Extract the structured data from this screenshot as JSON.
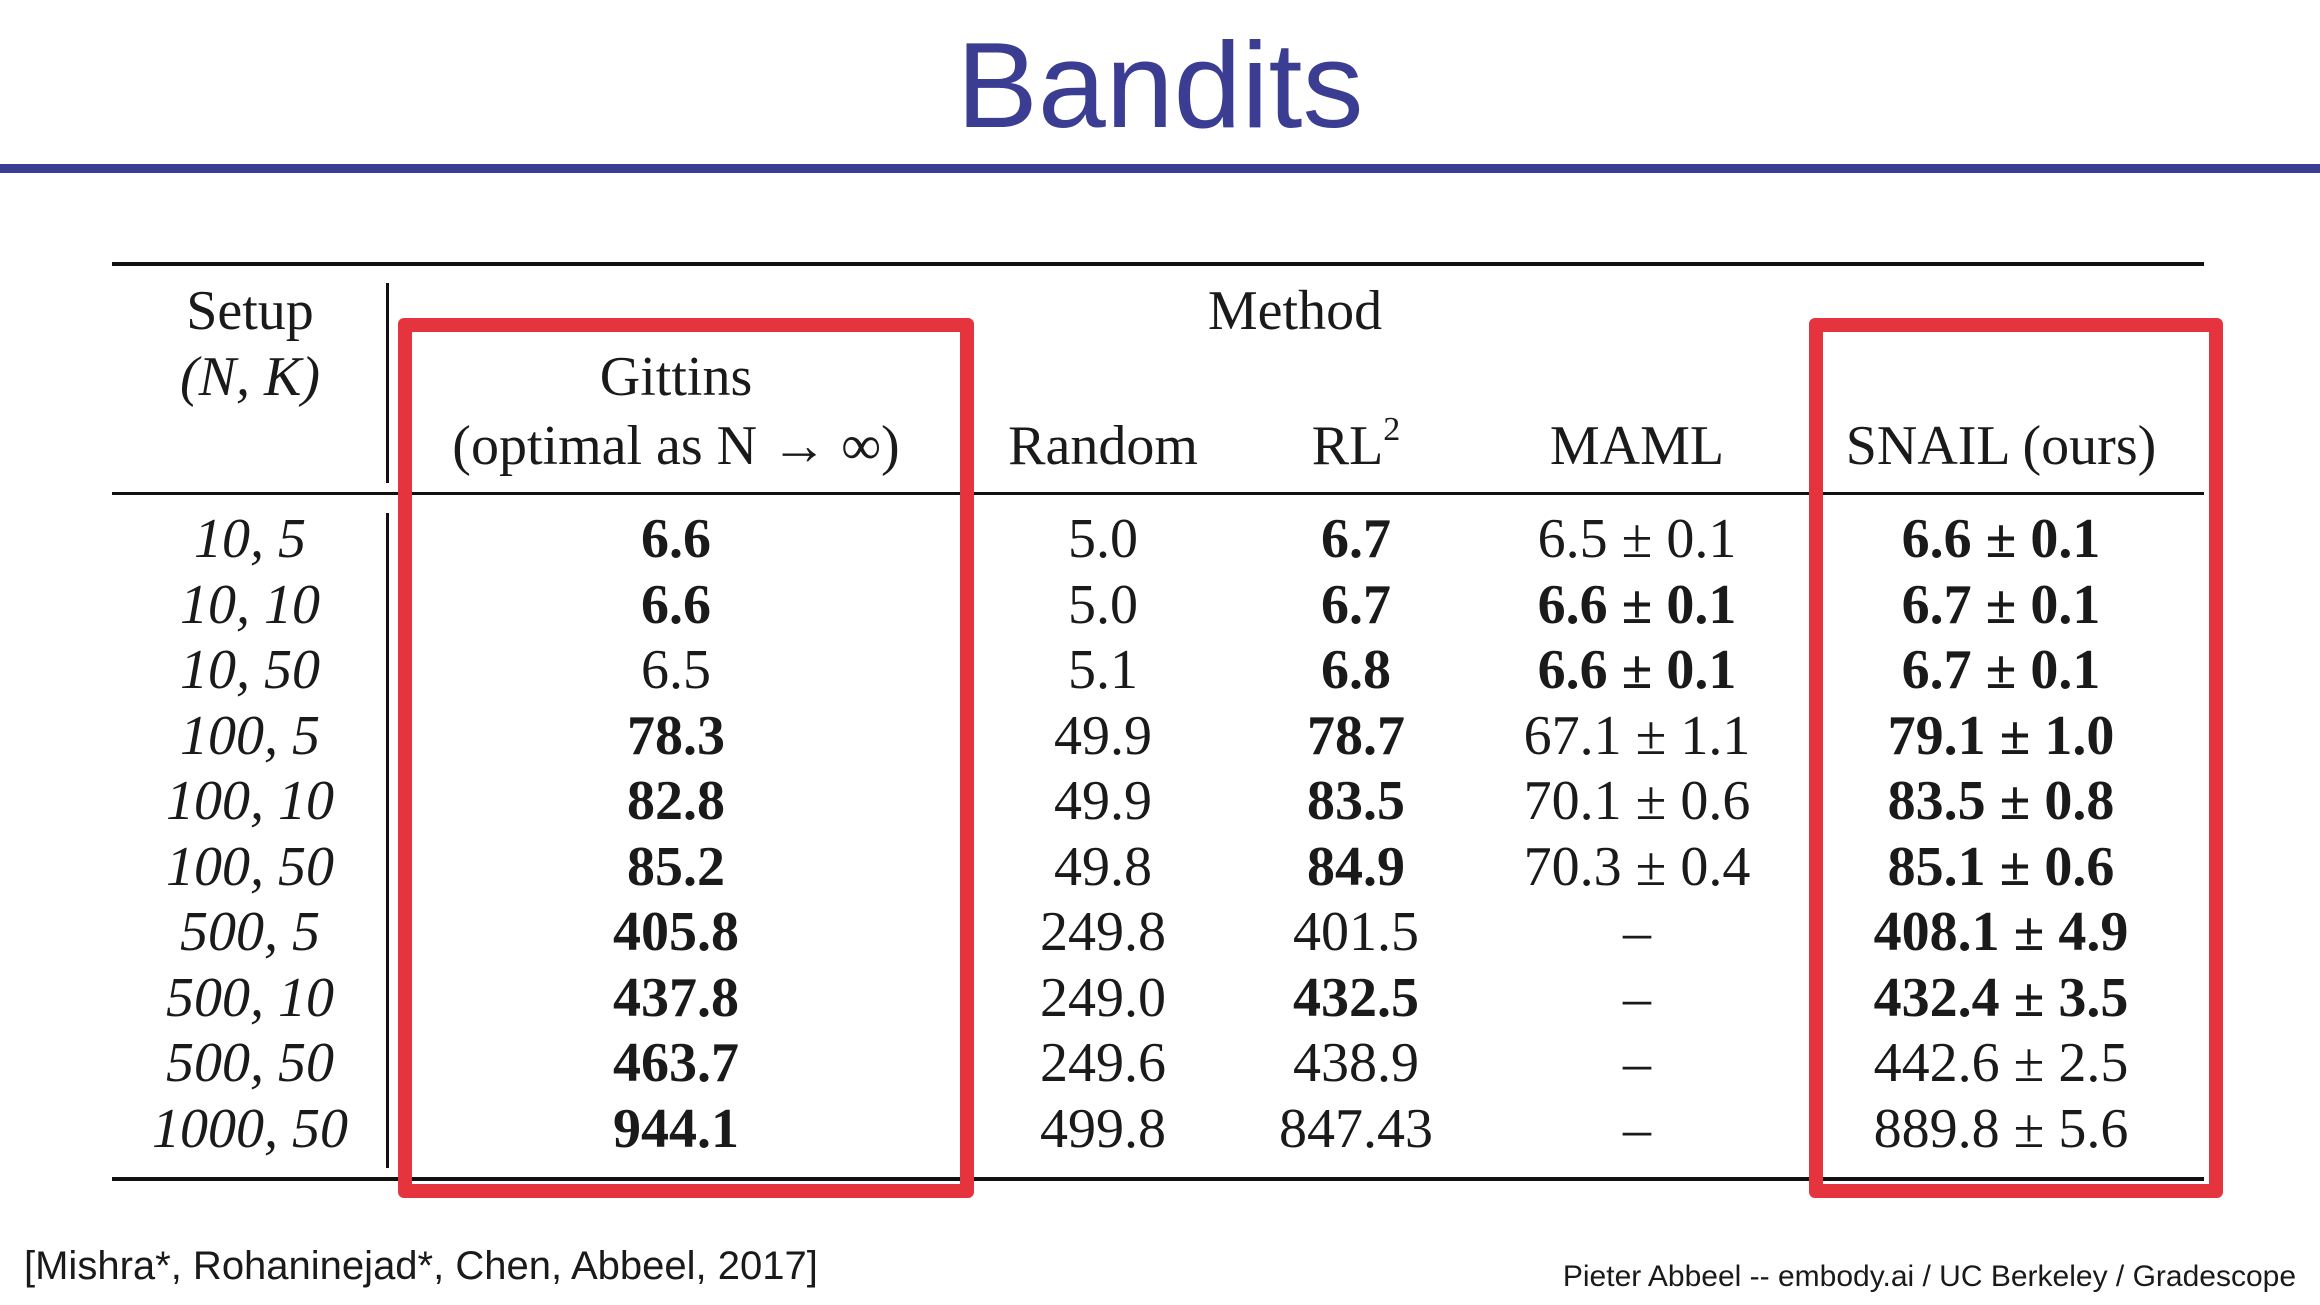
{
  "slide": {
    "title": "Bandits",
    "citation": "[Mishra*, Rohaninejad*, Chen, Abbeel, 2017]",
    "credit": "Pieter Abbeel -- embody.ai / UC Berkeley / Gradescope"
  },
  "table": {
    "setup_header_line1": "Setup",
    "setup_header_line2": "(N, K)",
    "method_header": "Method",
    "columns": {
      "gittins_line1": "Gittins",
      "gittins_line2": "(optimal as N → ∞)",
      "random": "Random",
      "rl2_base": "RL",
      "rl2_sup": "2",
      "maml": "MAML",
      "snail": "SNAIL (ours)"
    },
    "rows": [
      {
        "setup": "10, 5",
        "gittins": "6.6",
        "gittins_bold": true,
        "random": "5.0",
        "rl2": "6.7",
        "rl2_bold": true,
        "maml": "6.5 ± 0.1",
        "maml_bold": false,
        "snail": "6.6 ± 0.1",
        "snail_bold": true
      },
      {
        "setup": "10, 10",
        "gittins": "6.6",
        "gittins_bold": true,
        "random": "5.0",
        "rl2": "6.7",
        "rl2_bold": true,
        "maml": "6.6 ± 0.1",
        "maml_bold": true,
        "snail": "6.7 ± 0.1",
        "snail_bold": true
      },
      {
        "setup": "10, 50",
        "gittins": "6.5",
        "gittins_bold": false,
        "random": "5.1",
        "rl2": "6.8",
        "rl2_bold": true,
        "maml": "6.6 ± 0.1",
        "maml_bold": true,
        "snail": "6.7 ± 0.1",
        "snail_bold": true
      },
      {
        "setup": "100, 5",
        "gittins": "78.3",
        "gittins_bold": true,
        "random": "49.9",
        "rl2": "78.7",
        "rl2_bold": true,
        "maml": "67.1 ± 1.1",
        "maml_bold": false,
        "snail": "79.1 ± 1.0",
        "snail_bold": true
      },
      {
        "setup": "100, 10",
        "gittins": "82.8",
        "gittins_bold": true,
        "random": "49.9",
        "rl2": "83.5",
        "rl2_bold": true,
        "maml": "70.1 ± 0.6",
        "maml_bold": false,
        "snail": "83.5 ± 0.8",
        "snail_bold": true
      },
      {
        "setup": "100, 50",
        "gittins": "85.2",
        "gittins_bold": true,
        "random": "49.8",
        "rl2": "84.9",
        "rl2_bold": true,
        "maml": "70.3 ± 0.4",
        "maml_bold": false,
        "snail": "85.1 ± 0.6",
        "snail_bold": true
      },
      {
        "setup": "500, 5",
        "gittins": "405.8",
        "gittins_bold": true,
        "random": "249.8",
        "rl2": "401.5",
        "rl2_bold": false,
        "maml": "–",
        "maml_bold": false,
        "snail": "408.1 ± 4.9",
        "snail_bold": true
      },
      {
        "setup": "500, 10",
        "gittins": "437.8",
        "gittins_bold": true,
        "random": "249.0",
        "rl2": "432.5",
        "rl2_bold": true,
        "maml": "–",
        "maml_bold": false,
        "snail": "432.4 ± 3.5",
        "snail_bold": true
      },
      {
        "setup": "500, 50",
        "gittins": "463.7",
        "gittins_bold": true,
        "random": "249.6",
        "rl2": "438.9",
        "rl2_bold": false,
        "maml": "–",
        "maml_bold": false,
        "snail": "442.6 ± 2.5",
        "snail_bold": false
      },
      {
        "setup": "1000, 50",
        "gittins": "944.1",
        "gittins_bold": true,
        "random": "499.8",
        "rl2": "847.43",
        "rl2_bold": false,
        "maml": "–",
        "maml_bold": false,
        "snail": "889.8 ± 5.6",
        "snail_bold": false
      }
    ]
  },
  "colors": {
    "title": "#3b3d92",
    "highlight_box": "#e5343d"
  }
}
